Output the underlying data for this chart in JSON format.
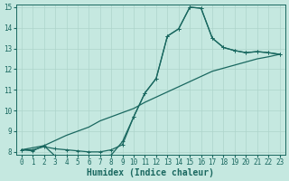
{
  "xlabel": "Humidex (Indice chaleur)",
  "xlim": [
    -0.5,
    23.5
  ],
  "ylim": [
    7.85,
    15.15
  ],
  "xticks": [
    0,
    1,
    2,
    3,
    4,
    5,
    6,
    7,
    8,
    9,
    10,
    11,
    12,
    13,
    14,
    15,
    16,
    17,
    18,
    19,
    20,
    21,
    22,
    23
  ],
  "yticks": [
    8,
    9,
    10,
    11,
    12,
    13,
    14,
    15
  ],
  "background_color": "#c5e8e0",
  "grid_color": "#aed4cb",
  "line_color": "#1a6860",
  "line1_x": [
    0,
    1,
    2,
    3,
    4,
    5,
    6,
    7,
    8,
    9,
    10,
    11,
    12,
    13,
    14,
    15,
    16,
    17,
    18,
    19,
    20,
    21,
    22,
    23
  ],
  "line1_y": [
    8.1,
    8.1,
    8.25,
    8.15,
    8.1,
    8.05,
    8.0,
    8.0,
    8.1,
    8.35,
    9.7,
    10.85,
    11.55,
    13.6,
    13.95,
    15.0,
    14.95,
    13.5,
    13.05,
    12.9,
    12.8,
    12.85,
    12.8,
    12.72
  ],
  "line2_x": [
    0,
    1,
    2,
    3,
    4,
    5,
    6,
    7,
    8,
    9,
    10,
    11,
    12,
    13,
    14,
    15,
    16,
    17,
    18,
    19,
    20,
    21,
    22,
    23
  ],
  "line2_y": [
    8.1,
    8.05,
    8.3,
    7.8,
    7.8,
    7.8,
    7.75,
    7.78,
    7.85,
    8.5,
    9.7,
    10.85,
    11.55,
    13.6,
    13.95,
    15.0,
    14.95,
    13.5,
    13.05,
    12.9,
    12.8,
    12.85,
    12.8,
    12.72
  ],
  "line3_x": [
    0,
    2,
    3,
    4,
    5,
    6,
    7,
    8,
    9,
    10,
    11,
    12,
    13,
    14,
    15,
    16,
    17,
    18,
    19,
    20,
    21,
    22,
    23
  ],
  "line3_y": [
    8.1,
    8.3,
    8.55,
    8.8,
    9.0,
    9.2,
    9.5,
    9.7,
    9.9,
    10.1,
    10.4,
    10.65,
    10.9,
    11.15,
    11.4,
    11.65,
    11.9,
    12.05,
    12.2,
    12.35,
    12.5,
    12.6,
    12.72
  ],
  "marker_size": 2.5,
  "linewidth": 0.9,
  "tick_fontsize": 5.5,
  "xlabel_fontsize": 7
}
